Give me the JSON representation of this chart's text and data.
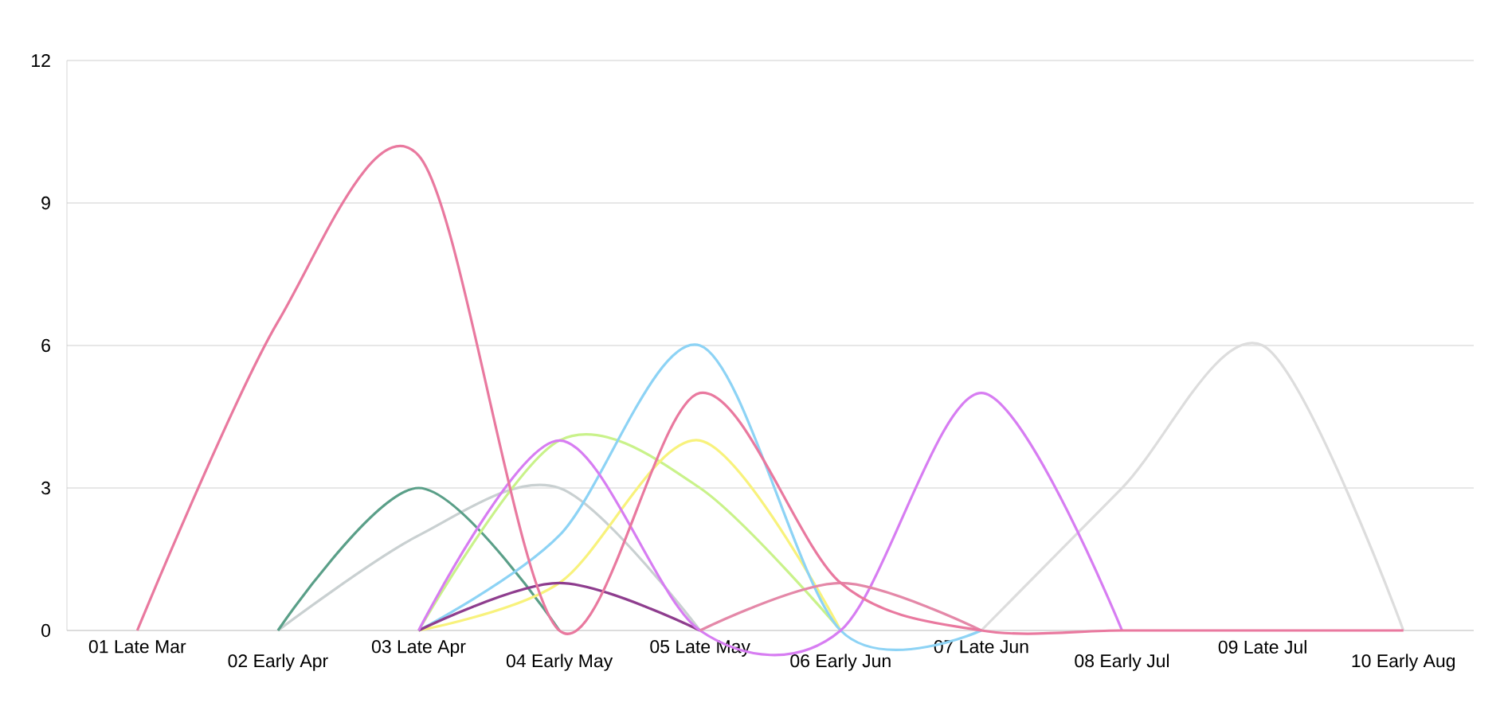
{
  "chart_data": {
    "type": "line",
    "categories": [
      "01 Late Mar",
      "02 Early Apr",
      "03 Late Apr",
      "04 Early May",
      "05 Late May",
      "06 Early Jun",
      "07 Late Jun",
      "08 Early Jul",
      "09 Late Jul",
      "10 Early Aug"
    ],
    "series": [
      {
        "color": "#c9d0d1",
        "values": [
          null,
          0,
          2,
          3,
          0,
          null,
          null,
          null,
          null,
          null
        ]
      },
      {
        "color": "#dddddd",
        "values": [
          null,
          null,
          null,
          null,
          null,
          null,
          0,
          3,
          6,
          0
        ]
      },
      {
        "color": "#5a9f88",
        "values": [
          null,
          0,
          3,
          0,
          null,
          null,
          null,
          null,
          null,
          null
        ]
      },
      {
        "color": "#c9f28a",
        "values": [
          null,
          null,
          0,
          4,
          3,
          0,
          null,
          null,
          null,
          null
        ]
      },
      {
        "color": "#f8f27c",
        "values": [
          null,
          null,
          0,
          1,
          4,
          0,
          null,
          null,
          null,
          null
        ]
      },
      {
        "color": "#8dd3f5",
        "values": [
          null,
          null,
          0,
          2,
          6,
          0,
          0,
          null,
          null,
          null
        ]
      },
      {
        "color": "#8e3d8e",
        "values": [
          null,
          null,
          0,
          1,
          0,
          null,
          null,
          null,
          null,
          null
        ]
      },
      {
        "color": "#d77df2",
        "values": [
          null,
          null,
          0,
          4,
          0,
          0,
          5,
          0,
          null,
          null
        ]
      },
      {
        "color": "#e488a8",
        "values": [
          null,
          null,
          null,
          null,
          0,
          1,
          0,
          null,
          null,
          null
        ]
      },
      {
        "color": "#e9799f",
        "values": [
          0,
          6.5,
          10,
          0,
          5,
          1,
          0,
          0,
          0,
          0
        ]
      }
    ],
    "ylim": [
      0,
      12
    ],
    "yticks": [
      0,
      3,
      6,
      9,
      12
    ],
    "grid": "y"
  }
}
